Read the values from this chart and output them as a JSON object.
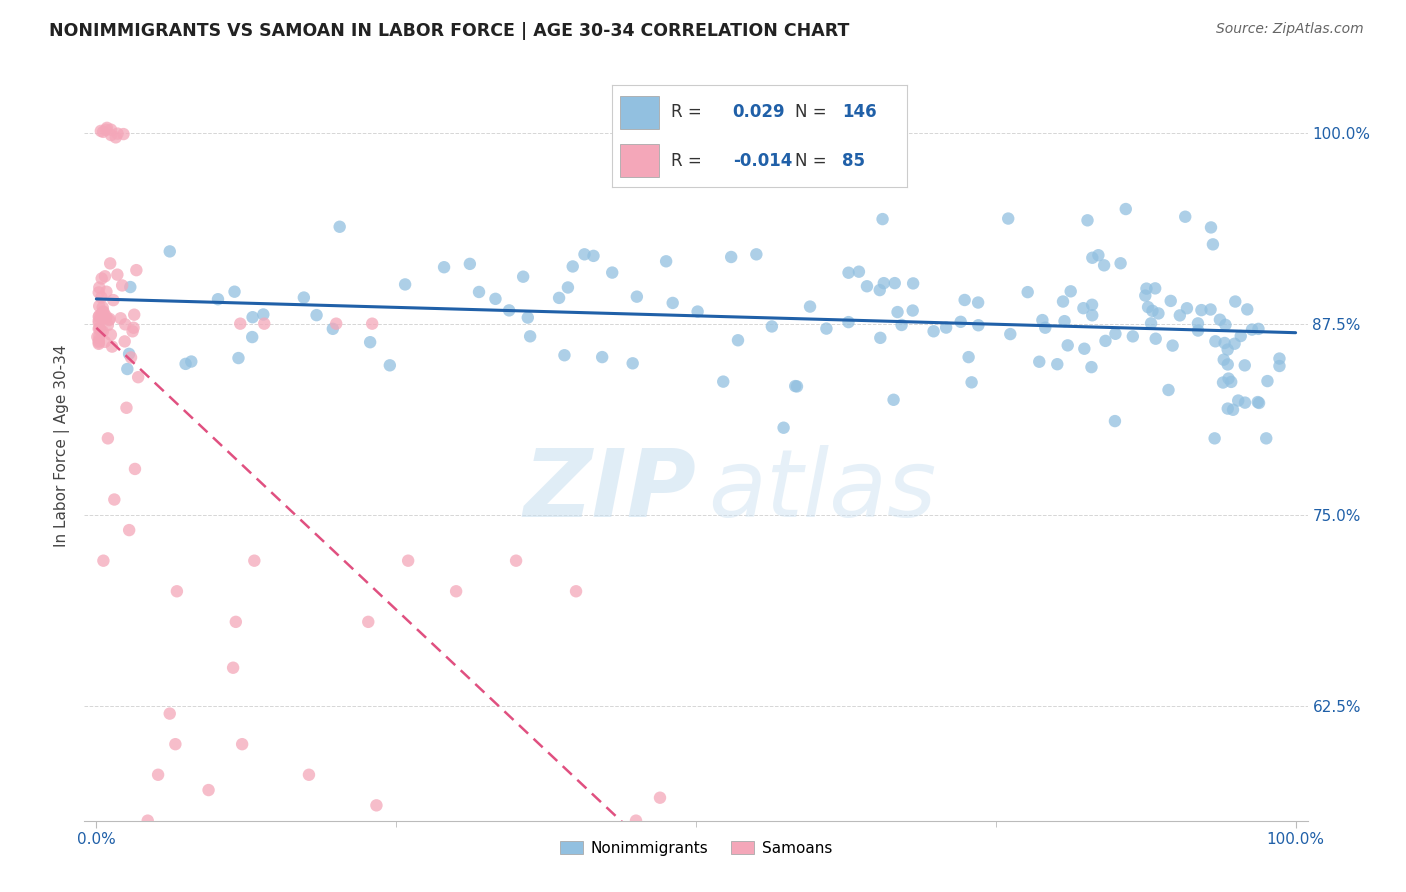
{
  "title": "NONIMMIGRANTS VS SAMOAN IN LABOR FORCE | AGE 30-34 CORRELATION CHART",
  "source": "Source: ZipAtlas.com",
  "ylabel": "In Labor Force | Age 30-34",
  "xlim": [
    -0.01,
    1.01
  ],
  "ylim": [
    0.55,
    1.04
  ],
  "yticks": [
    0.625,
    0.75,
    0.875,
    1.0
  ],
  "ytick_labels": [
    "62.5%",
    "75.0%",
    "87.5%",
    "100.0%"
  ],
  "xtick_labels": [
    "0.0%",
    "100.0%"
  ],
  "xticks": [
    0.0,
    1.0
  ],
  "watermark_zip": "ZIP",
  "watermark_atlas": "atlas",
  "legend_blue_r": "0.029",
  "legend_blue_n": "146",
  "legend_pink_r": "-0.014",
  "legend_pink_n": "85",
  "blue_color": "#92c0e0",
  "pink_color": "#f4a7b9",
  "trend_blue_color": "#2060a8",
  "trend_pink_color": "#e05080",
  "axis_color": "#2060a8",
  "background_color": "#ffffff",
  "grid_color": "#cccccc",
  "title_color": "#222222",
  "source_color": "#666666"
}
